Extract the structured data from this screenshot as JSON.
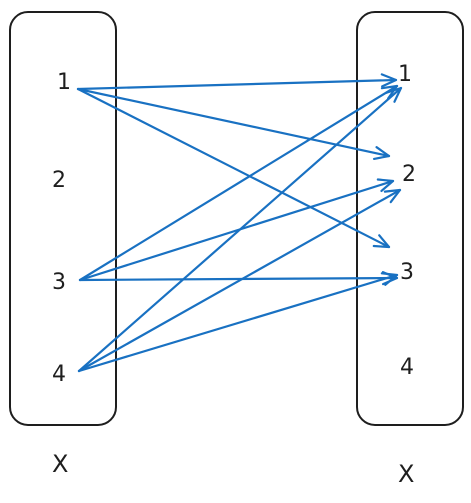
{
  "left_set": {
    "label": "X",
    "elements": [
      "1",
      "2",
      "3",
      "4"
    ]
  },
  "right_set": {
    "label": "X",
    "elements": [
      "1",
      "2",
      "3",
      "4"
    ]
  },
  "edges": [
    {
      "from": "1",
      "to": "1"
    },
    {
      "from": "1",
      "to": "2"
    },
    {
      "from": "1",
      "to": "3"
    },
    {
      "from": "3",
      "to": "1"
    },
    {
      "from": "3",
      "to": "2"
    },
    {
      "from": "3",
      "to": "3"
    },
    {
      "from": "4",
      "to": "1"
    },
    {
      "from": "4",
      "to": "2"
    },
    {
      "from": "4",
      "to": "3"
    }
  ],
  "colors": {
    "edge": "#1971c2",
    "ink": "#1e1e1e"
  }
}
